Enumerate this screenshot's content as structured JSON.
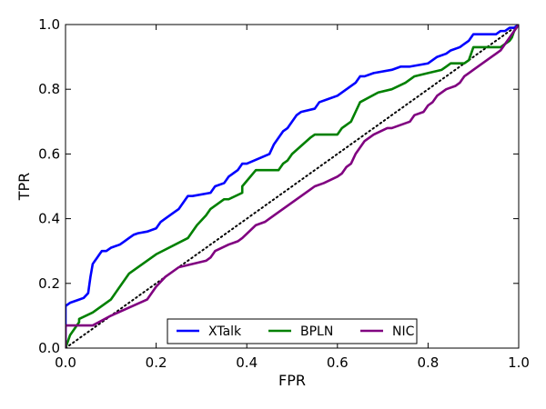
{
  "chart_data": {
    "type": "line",
    "xlabel": "FPR",
    "ylabel": "TPR",
    "xlim": [
      0.0,
      1.0
    ],
    "ylim": [
      0.0,
      1.0
    ],
    "xticks": [
      0.0,
      0.2,
      0.4,
      0.6,
      0.8,
      1.0
    ],
    "yticks": [
      0.0,
      0.2,
      0.4,
      0.6,
      0.8,
      1.0
    ],
    "xtick_labels": [
      "0.0",
      "0.2",
      "0.4",
      "0.6",
      "0.8",
      "1.0"
    ],
    "ytick_labels": [
      "0.0",
      "0.2",
      "0.4",
      "0.6",
      "0.8",
      "1.0"
    ],
    "grid": false,
    "legend_position": "bottom-center",
    "reference_line": {
      "style": "dotted",
      "color": "#000000",
      "x": [
        0.0,
        1.0
      ],
      "y": [
        0.0,
        1.0
      ]
    },
    "series": [
      {
        "name": "XTalk",
        "color": "#0000ff",
        "x": [
          0.0,
          0.0,
          0.01,
          0.02,
          0.03,
          0.04,
          0.05,
          0.055,
          0.06,
          0.065,
          0.07,
          0.075,
          0.08,
          0.09,
          0.1,
          0.12,
          0.13,
          0.14,
          0.15,
          0.16,
          0.18,
          0.2,
          0.21,
          0.22,
          0.24,
          0.25,
          0.27,
          0.28,
          0.32,
          0.33,
          0.35,
          0.36,
          0.38,
          0.39,
          0.4,
          0.45,
          0.46,
          0.47,
          0.48,
          0.49,
          0.5,
          0.51,
          0.52,
          0.55,
          0.56,
          0.58,
          0.6,
          0.62,
          0.64,
          0.65,
          0.66,
          0.68,
          0.72,
          0.74,
          0.76,
          0.8,
          0.82,
          0.84,
          0.85,
          0.87,
          0.88,
          0.89,
          0.9,
          0.95,
          0.96,
          0.97,
          0.98,
          0.99,
          1.0
        ],
        "y": [
          0.0,
          0.13,
          0.14,
          0.145,
          0.15,
          0.155,
          0.17,
          0.22,
          0.26,
          0.27,
          0.28,
          0.29,
          0.3,
          0.3,
          0.31,
          0.32,
          0.33,
          0.34,
          0.35,
          0.355,
          0.36,
          0.37,
          0.39,
          0.4,
          0.42,
          0.43,
          0.47,
          0.47,
          0.48,
          0.5,
          0.51,
          0.53,
          0.55,
          0.57,
          0.57,
          0.6,
          0.63,
          0.65,
          0.67,
          0.68,
          0.7,
          0.72,
          0.73,
          0.74,
          0.76,
          0.77,
          0.78,
          0.8,
          0.82,
          0.84,
          0.84,
          0.85,
          0.86,
          0.87,
          0.87,
          0.88,
          0.9,
          0.91,
          0.92,
          0.93,
          0.94,
          0.95,
          0.97,
          0.97,
          0.98,
          0.98,
          0.99,
          0.99,
          1.0
        ]
      },
      {
        "name": "BPLN",
        "color": "#008000",
        "x": [
          0.0,
          0.005,
          0.01,
          0.02,
          0.03,
          0.03,
          0.06,
          0.1,
          0.14,
          0.2,
          0.27,
          0.29,
          0.31,
          0.32,
          0.35,
          0.36,
          0.39,
          0.39,
          0.42,
          0.47,
          0.48,
          0.49,
          0.5,
          0.54,
          0.55,
          0.6,
          0.61,
          0.63,
          0.64,
          0.65,
          0.69,
          0.72,
          0.75,
          0.77,
          0.8,
          0.83,
          0.84,
          0.85,
          0.88,
          0.89,
          0.9,
          0.95,
          0.96,
          0.97,
          0.98,
          0.985,
          0.99,
          1.0
        ],
        "y": [
          0.0,
          0.02,
          0.04,
          0.06,
          0.08,
          0.09,
          0.11,
          0.15,
          0.23,
          0.29,
          0.34,
          0.38,
          0.41,
          0.43,
          0.46,
          0.46,
          0.48,
          0.5,
          0.55,
          0.55,
          0.57,
          0.58,
          0.6,
          0.65,
          0.66,
          0.66,
          0.68,
          0.7,
          0.73,
          0.76,
          0.79,
          0.8,
          0.82,
          0.84,
          0.85,
          0.86,
          0.87,
          0.88,
          0.88,
          0.89,
          0.93,
          0.93,
          0.93,
          0.94,
          0.95,
          0.96,
          0.98,
          1.0
        ]
      },
      {
        "name": "NIC",
        "color": "#800080",
        "x": [
          0.0,
          0.0,
          0.06,
          0.1,
          0.18,
          0.19,
          0.2,
          0.22,
          0.25,
          0.31,
          0.32,
          0.33,
          0.36,
          0.38,
          0.39,
          0.42,
          0.44,
          0.45,
          0.47,
          0.52,
          0.54,
          0.55,
          0.57,
          0.6,
          0.61,
          0.62,
          0.63,
          0.64,
          0.65,
          0.66,
          0.68,
          0.71,
          0.72,
          0.76,
          0.77,
          0.79,
          0.8,
          0.81,
          0.82,
          0.84,
          0.86,
          0.87,
          0.88,
          0.89,
          0.9,
          0.92,
          0.94,
          0.95,
          0.96,
          0.97,
          0.98,
          0.99,
          1.0
        ],
        "y": [
          0.0,
          0.07,
          0.07,
          0.1,
          0.15,
          0.17,
          0.19,
          0.22,
          0.25,
          0.27,
          0.28,
          0.3,
          0.32,
          0.33,
          0.34,
          0.38,
          0.39,
          0.4,
          0.42,
          0.47,
          0.49,
          0.5,
          0.51,
          0.53,
          0.54,
          0.56,
          0.57,
          0.6,
          0.62,
          0.64,
          0.66,
          0.68,
          0.68,
          0.7,
          0.72,
          0.73,
          0.75,
          0.76,
          0.78,
          0.8,
          0.81,
          0.82,
          0.84,
          0.85,
          0.86,
          0.88,
          0.9,
          0.91,
          0.92,
          0.94,
          0.96,
          0.98,
          1.0
        ]
      }
    ]
  }
}
